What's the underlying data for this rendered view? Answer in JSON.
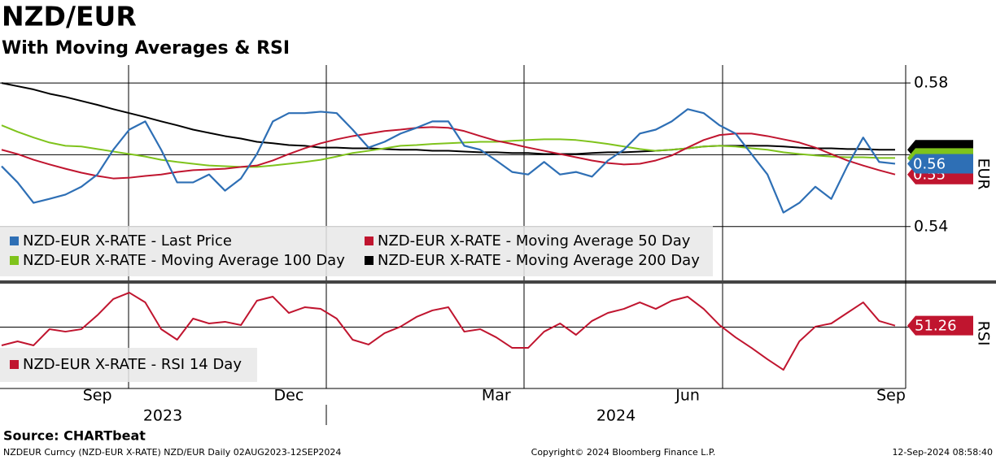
{
  "chart_data": [
    {
      "type": "line",
      "title": "NZD/EUR",
      "subtitle": "With Moving Averages & RSI",
      "y_label": "EUR",
      "categories": [
        null,
        null,
        null,
        null,
        null,
        null,
        "Sep",
        null,
        null,
        null,
        null,
        null,
        null,
        null,
        null,
        null,
        null,
        null,
        "Dec",
        null,
        null,
        null,
        null,
        null,
        null,
        null,
        null,
        null,
        null,
        null,
        null,
        "Mar",
        null,
        null,
        null,
        null,
        null,
        null,
        null,
        null,
        null,
        null,
        null,
        "Jun",
        null,
        null,
        null,
        null,
        null,
        null,
        null,
        null,
        null,
        null,
        null,
        null,
        "Sep"
      ],
      "x_groups": [
        "2023",
        "2024"
      ],
      "ylim": [
        0.525,
        0.585
      ],
      "yticks": [
        0.54,
        0.56,
        0.58
      ],
      "grid": true,
      "series": [
        {
          "name": "NZD-EUR X-RATE - Last Price",
          "color": "#2e6fb5",
          "last_label": "0.56",
          "values": [
            0.5568,
            0.5523,
            0.5466,
            0.5477,
            0.5489,
            0.5511,
            0.5545,
            0.5614,
            0.567,
            0.5693,
            0.5614,
            0.5523,
            0.5523,
            0.5545,
            0.55,
            0.5534,
            0.5602,
            0.5693,
            0.5716,
            0.5716,
            0.572,
            0.5716,
            0.567,
            0.562,
            0.5636,
            0.5659,
            0.5675,
            0.5693,
            0.5693,
            0.5625,
            0.5614,
            0.5584,
            0.5552,
            0.5545,
            0.558,
            0.5545,
            0.5552,
            0.5539,
            0.5584,
            0.5614,
            0.5659,
            0.567,
            0.5693,
            0.5727,
            0.5716,
            0.5682,
            0.5659,
            0.5602,
            0.5545,
            0.5439,
            0.5466,
            0.5511,
            0.5477,
            0.5568,
            0.5648,
            0.558,
            0.5575
          ]
        },
        {
          "name": "NZD-EUR X-RATE - Moving Average 50 Day",
          "color": "#c0152f",
          "last_label": "0.55",
          "values": [
            0.5614,
            0.5602,
            0.5586,
            0.5573,
            0.5561,
            0.555,
            0.5541,
            0.5534,
            0.5536,
            0.5541,
            0.5545,
            0.5552,
            0.5557,
            0.5559,
            0.5561,
            0.5566,
            0.557,
            0.5584,
            0.5602,
            0.5618,
            0.5632,
            0.5643,
            0.5652,
            0.5659,
            0.5666,
            0.567,
            0.5675,
            0.5677,
            0.5675,
            0.5666,
            0.5652,
            0.5639,
            0.563,
            0.562,
            0.5611,
            0.5602,
            0.5593,
            0.5584,
            0.5577,
            0.5573,
            0.5575,
            0.5584,
            0.5598,
            0.562,
            0.5641,
            0.5655,
            0.5659,
            0.5659,
            0.5652,
            0.5643,
            0.5634,
            0.562,
            0.5602,
            0.5584,
            0.557,
            0.5557,
            0.5545
          ]
        },
        {
          "name": "NZD-EUR X-RATE - Moving Average 100 Day",
          "color": "#7fc31c",
          "values": [
            0.5682,
            0.5664,
            0.5648,
            0.5634,
            0.5625,
            0.5623,
            0.5616,
            0.5609,
            0.5602,
            0.5595,
            0.5586,
            0.558,
            0.5575,
            0.557,
            0.5568,
            0.5566,
            0.5566,
            0.557,
            0.5575,
            0.558,
            0.5586,
            0.5595,
            0.5605,
            0.5611,
            0.5618,
            0.5625,
            0.5627,
            0.563,
            0.5632,
            0.5634,
            0.5636,
            0.5636,
            0.5639,
            0.5641,
            0.5643,
            0.5643,
            0.5641,
            0.5636,
            0.563,
            0.5623,
            0.5616,
            0.5611,
            0.5614,
            0.5618,
            0.5623,
            0.5625,
            0.5623,
            0.5618,
            0.5614,
            0.5607,
            0.5602,
            0.5598,
            0.5595,
            0.5593,
            0.5593,
            0.5591,
            0.5591
          ]
        },
        {
          "name": "NZD-EUR X-RATE - Moving Average 200 Day",
          "color": "#000000",
          "values": [
            0.58,
            0.5791,
            0.5782,
            0.577,
            0.5761,
            0.575,
            0.5739,
            0.5727,
            0.5716,
            0.5705,
            0.5693,
            0.5682,
            0.567,
            0.5661,
            0.5652,
            0.5645,
            0.5636,
            0.5632,
            0.5627,
            0.5625,
            0.562,
            0.562,
            0.5618,
            0.5618,
            0.5616,
            0.5614,
            0.5614,
            0.5611,
            0.5611,
            0.5609,
            0.5607,
            0.5607,
            0.5605,
            0.5605,
            0.5602,
            0.5602,
            0.5602,
            0.5605,
            0.5607,
            0.5607,
            0.5609,
            0.5611,
            0.5614,
            0.5618,
            0.5623,
            0.5625,
            0.5625,
            0.5625,
            0.5625,
            0.5623,
            0.562,
            0.5618,
            0.5618,
            0.5616,
            0.5616,
            0.5614,
            0.5614
          ]
        }
      ]
    },
    {
      "type": "line",
      "y_label": "RSI",
      "ylim": [
        1,
        86
      ],
      "yticks": [
        50
      ],
      "grid": true,
      "series": [
        {
          "name": "NZD-EUR X-RATE - RSI 14 Day",
          "color": "#c0152f",
          "values": [
            34.6,
            38.0,
            34.6,
            48.3,
            46.2,
            48.3,
            60.0,
            73.7,
            79.1,
            70.9,
            48.3,
            39.4,
            57.2,
            53.1,
            54.5,
            51.7,
            72.3,
            75.7,
            62.0,
            66.8,
            65.4,
            57.2,
            39.4,
            35.3,
            44.9,
            50.4,
            58.6,
            64.1,
            66.8,
            46.2,
            48.3,
            41.4,
            32.5,
            32.5,
            46.2,
            53.1,
            43.5,
            55.2,
            62.0,
            65.4,
            70.9,
            65.4,
            72.3,
            75.7,
            65.4,
            51.7,
            41.4,
            32.5,
            22.9,
            14.0,
            38.0,
            50.4,
            53.1,
            62.0,
            70.9,
            55.2,
            51.26
          ]
        }
      ]
    }
  ],
  "footer": {
    "source": "Source: CHARTbeat",
    "description": "NZDEUR Curncy (NZD-EUR X-RATE) NZD/EUR  Daily 02AUG2023-12SEP2024",
    "copyright": "Copyright© 2024 Bloomberg Finance L.P.",
    "timestamp": "12-Sep-2024 08:58:40"
  }
}
